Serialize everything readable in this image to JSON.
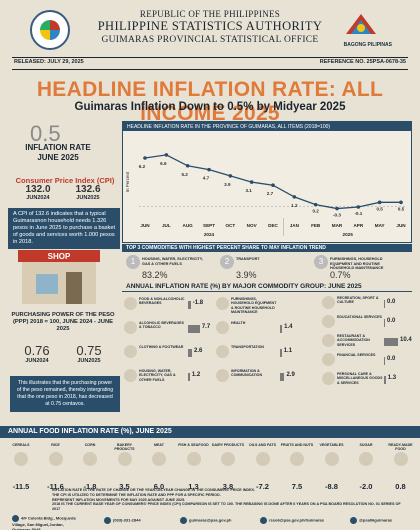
{
  "header": {
    "republic": "REPUBLIC OF THE PHILIPPINES",
    "agency": "PHILIPPINE STATISTICS AUTHORITY",
    "office": "GUIMARAS PROVINCIAL STATISTICAL OFFICE",
    "released": "RELEASED: JULY 29, 2025",
    "reference": "REFERENCE NO. 25PSA-0678-35",
    "right_logo": "BAGONG PILIPINAS"
  },
  "title": "HEADLINE INFLATION RATE: ALL INCOME 2025",
  "subtitle": "Guimaras Inflation Down to 0.5% by Midyear 2025",
  "inflation": {
    "value": "0.5",
    "label1": "INFLATION RATE",
    "label2": "JUNE 2025"
  },
  "cpi": {
    "title": "Consumer Price Index (CPI)",
    "items": [
      {
        "value": "132.0",
        "year": "JUN2024"
      },
      {
        "value": "132.6",
        "year": "JUN2025"
      }
    ],
    "description": "A CPI of 132.6 indicates that a typical Guimarasnon household needs 1.326 pesos in June 2025 to purchase a basket of goods and services worth 1.000 pesos in 2018."
  },
  "shop_sign": "SHOP",
  "ppp": {
    "title": "PURCHASING POWER OF THE PESO (PPP) 2018 = 100, JUNE 2024 - JUNE 2025",
    "items": [
      {
        "value": "0.76",
        "year": "JUN2024"
      },
      {
        "value": "0.75",
        "year": "JUN2025"
      }
    ],
    "description": "This illustrates that the purchasing power of the peso remained, thereby intergrating that the one peso in 2018, has decreased at 0.75 centavos."
  },
  "chart_data": {
    "type": "line",
    "title": "HEADLINE INFLATION RATE IN THE PROVINCE OF GUIMARAS, ALL ITEMS (2018=100)",
    "ylabel": "In Percent",
    "categories": [
      "JUN",
      "JUL",
      "AUG",
      "SEPT",
      "OCT",
      "NOV",
      "DEC",
      "JAN",
      "FEB",
      "MAR",
      "APR",
      "MAY",
      "JUN"
    ],
    "year_labels": [
      "2024",
      "2025"
    ],
    "values": [
      6.2,
      6.6,
      5.2,
      4.7,
      3.9,
      3.1,
      2.7,
      1.2,
      0.2,
      -0.3,
      -0.1,
      0.5,
      0.5
    ],
    "value_labels": [
      "6.2",
      "6.6",
      "5.2",
      "4.7",
      "3.9",
      "3.1",
      "2.7",
      "1.2",
      "0.2",
      "-0.3",
      "-0.1",
      "0.5",
      "0.5"
    ],
    "ylim": [
      -1,
      8
    ],
    "color": "#2a4e6a"
  },
  "top3": {
    "title": "TOP 3 COMMODITIES WITH HIGHEST PERCENT SHARE TO MAY INFLATION TREND",
    "items": [
      {
        "n": "1",
        "label": "HOUSING, WATER, ELECTRICITY, GAS & OTHER FUELS",
        "pct": "83.2%"
      },
      {
        "n": "2",
        "label": "TRANSPORT",
        "pct": "3.9%"
      },
      {
        "n": "3",
        "label": "FURNISHINGS, HOUSEHOLD EQUIPMENT AND ROUTINE HOUSEHOLD MAINTENANCE",
        "pct": "0.7%"
      }
    ]
  },
  "commodity": {
    "title": "ANNUAL INFLATION RATE (%) BY MAJOR COMMODITY GROUP: JUNE 2025",
    "left": [
      {
        "label": "FOOD & NON-ALCOHOLIC BEVERAGES",
        "value": "-1.8"
      },
      {
        "label": "ALCOHOLIC BEVERAGES & TOBACCO",
        "value": "7.7"
      },
      {
        "label": "CLOTHING & FOOTWEAR",
        "value": "2.6"
      },
      {
        "label": "HOUSING, WATER, ELECTRICITY, GAS & OTHER FUELS",
        "value": "1.2"
      }
    ],
    "mid": [
      {
        "label": "FURNISHINGS, HOUSEHOLD EQUIPMENT & ROUTINE HOUSEHOLD MAINTENANCE",
        "value": ""
      },
      {
        "label": "HEALTH",
        "value": "1.4"
      },
      {
        "label": "TRANSPORTATION",
        "value": "1.1"
      },
      {
        "label": "INFORMATION & COMMUNICATION",
        "value": "2.9"
      }
    ],
    "right": [
      {
        "label": "RECREATION, SPORT & CULTURE",
        "value": "0.0"
      },
      {
        "label": "EDUCATIONAL SERVICES",
        "value": "0.0"
      },
      {
        "label": "RESTAURANT & ACCOMMODATION SERVICES",
        "value": "10.4"
      },
      {
        "label": "FINANCIAL SERVICES",
        "value": "0.0"
      },
      {
        "label": "PERSONAL CARE & MISCELLANEOUS GOODS & SERVICES",
        "value": "1.3"
      }
    ]
  },
  "food": {
    "title": "ANNUAL FOOD INFLATION RATE (%), JUNE 2025",
    "items": [
      {
        "label": "CEREALS",
        "value": "-11.5"
      },
      {
        "label": "RICE",
        "value": "-11.6"
      },
      {
        "label": "CORN",
        "value": "-1.8"
      },
      {
        "label": "BAKERY PRODUCTS",
        "value": "3.5"
      },
      {
        "label": "MEAT",
        "value": "6.0"
      },
      {
        "label": "FISH & SEAFOOD",
        "value": "1.3"
      },
      {
        "label": "DAIRY PRODUCTS",
        "value": "3.8"
      },
      {
        "label": "OILS AND FATS",
        "value": "-7.2"
      },
      {
        "label": "FRUITS AND NUTS",
        "value": "7.5"
      },
      {
        "label": "VEGETABLES",
        "value": "-8.8"
      },
      {
        "label": "SUGAR",
        "value": "-2.0"
      },
      {
        "label": "READY-MADE FOOD",
        "value": "0.8"
      }
    ]
  },
  "notes": [
    "INFLATION RATE IS THE RATE OF CHANGE OR THE YEAR-ON-YEAR CHANGE IN THE CONSUMERS' PRICE INDEX.",
    "THE CPI IS UTILIZED TO DETERMINE THE INFLATION RATE AND PPP FOR A SPECIFIC PERIOD.",
    "REPRESENT INFLATION MOVEMENTS FOR MAY 2025 AGAINST JUNE 2025.",
    "2018 IS THE CURRENT BASE YEAR OF CONSUMERS' PRICE INDEX (CPI) COMPARISON IS SET TO 100. THE REBASING IS DONE AFTER 6 YEARS ON A PSA BOARD RESOLUTION NO. 01 SERIES OF 2017"
  ],
  "footer": {
    "address": "4/F Colenta Bldg., Mosqueda Village, San Miguel,Jordan, Guimaras 5045",
    "phone": "(033)-331-2844",
    "email1": "guimaras@psa.gov.ph",
    "email2": "rsso6@psa.gov.ph/Guimaras",
    "social": "@psa06guimaras"
  }
}
